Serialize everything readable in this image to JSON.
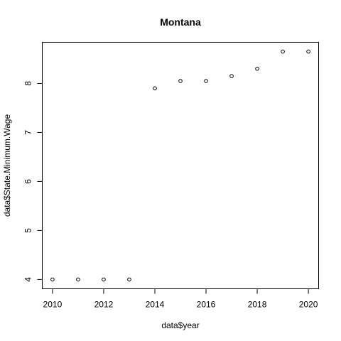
{
  "chart_data": {
    "type": "scatter",
    "title": "Montana",
    "xlabel": "data$year",
    "ylabel": "data$State.Minimum.Wage",
    "x": [
      2010,
      2011,
      2012,
      2013,
      2014,
      2015,
      2016,
      2017,
      2018,
      2019,
      2020
    ],
    "y": [
      4.0,
      4.0,
      4.0,
      4.0,
      7.9,
      8.05,
      8.05,
      8.15,
      8.3,
      8.65,
      8.65
    ],
    "xlim": [
      2009.6,
      2020.4
    ],
    "ylim": [
      3.81,
      8.84
    ],
    "xticks": [
      2010,
      2012,
      2014,
      2016,
      2018,
      2020
    ],
    "xtick_labels": [
      "2010",
      "2012",
      "2014",
      "2016",
      "2018",
      "2020"
    ],
    "yticks": [
      4,
      5,
      6,
      7,
      8
    ],
    "ytick_labels": [
      "4",
      "5",
      "6",
      "7",
      "8"
    ],
    "grid": false,
    "marker": "open-circle"
  }
}
